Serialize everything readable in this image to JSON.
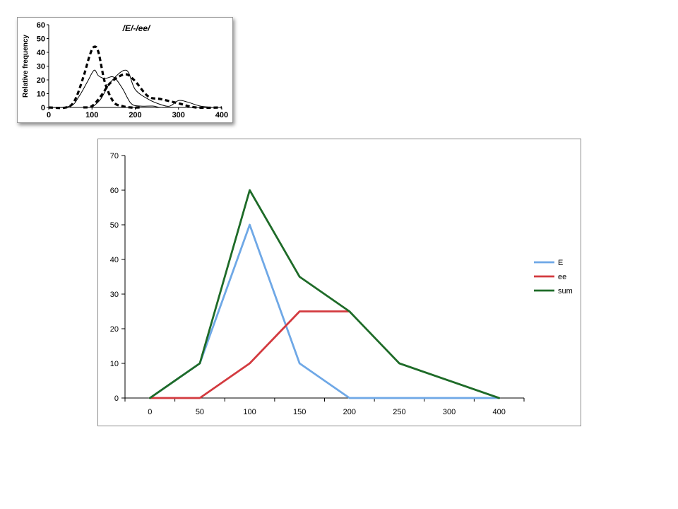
{
  "chart_data": [
    {
      "type": "line",
      "title": "/E/-/ee/",
      "ylabel": "Relative frequency",
      "xlabel": "",
      "x_ticks": [
        0,
        100,
        200,
        300,
        400
      ],
      "y_ticks": [
        0,
        10,
        20,
        30,
        40,
        50,
        60
      ],
      "xlim": [
        0,
        400
      ],
      "ylim": [
        0,
        60
      ],
      "grid": false,
      "legend": "none",
      "series": [
        {
          "style": "dashed-bold",
          "color": "#000000",
          "x": [
            0,
            40,
            60,
            80,
            95,
            105,
            115,
            130,
            150,
            170,
            190,
            210
          ],
          "y": [
            0,
            0,
            5,
            22,
            38,
            44,
            40,
            18,
            4,
            1,
            0,
            0
          ]
        },
        {
          "style": "dashed-bold",
          "color": "#000000",
          "x": [
            80,
            100,
            120,
            140,
            160,
            180,
            200,
            230,
            260,
            300,
            340,
            400
          ],
          "y": [
            0,
            1,
            8,
            17,
            22,
            24,
            19,
            8,
            6,
            3,
            0,
            0
          ]
        },
        {
          "style": "solid-thin",
          "color": "#000000",
          "x": [
            0,
            50,
            70,
            90,
            105,
            115,
            130,
            150,
            170,
            190,
            210,
            240,
            260,
            300
          ],
          "y": [
            0,
            1,
            8,
            19,
            27,
            23,
            21,
            22,
            14,
            3,
            1,
            1,
            0,
            0
          ]
        },
        {
          "style": "solid-thin",
          "color": "#000000",
          "x": [
            100,
            120,
            140,
            160,
            175,
            185,
            200,
            230,
            260,
            280,
            300,
            320,
            350,
            380
          ],
          "y": [
            0,
            6,
            17,
            24,
            27,
            25,
            13,
            6,
            2,
            1,
            5,
            4,
            1,
            0
          ]
        }
      ]
    },
    {
      "type": "line",
      "categories": [
        "0",
        "50",
        "100",
        "150",
        "200",
        "250",
        "300",
        "400"
      ],
      "ylim": [
        0,
        70
      ],
      "y_ticks": [
        0,
        10,
        20,
        30,
        40,
        50,
        60,
        70
      ],
      "grid": false,
      "legend": "right",
      "series": [
        {
          "name": "E",
          "color": "#6fa8e6",
          "values": [
            0,
            10,
            50,
            10,
            0,
            0,
            0,
            0
          ]
        },
        {
          "name": "ee",
          "color": "#d33a3f",
          "values": [
            0,
            0,
            10,
            25,
            25,
            null,
            null,
            null
          ]
        },
        {
          "name": "sum",
          "color": "#1e6b28",
          "values": [
            0,
            10,
            60,
            35,
            25,
            10,
            null,
            0
          ]
        }
      ]
    }
  ]
}
